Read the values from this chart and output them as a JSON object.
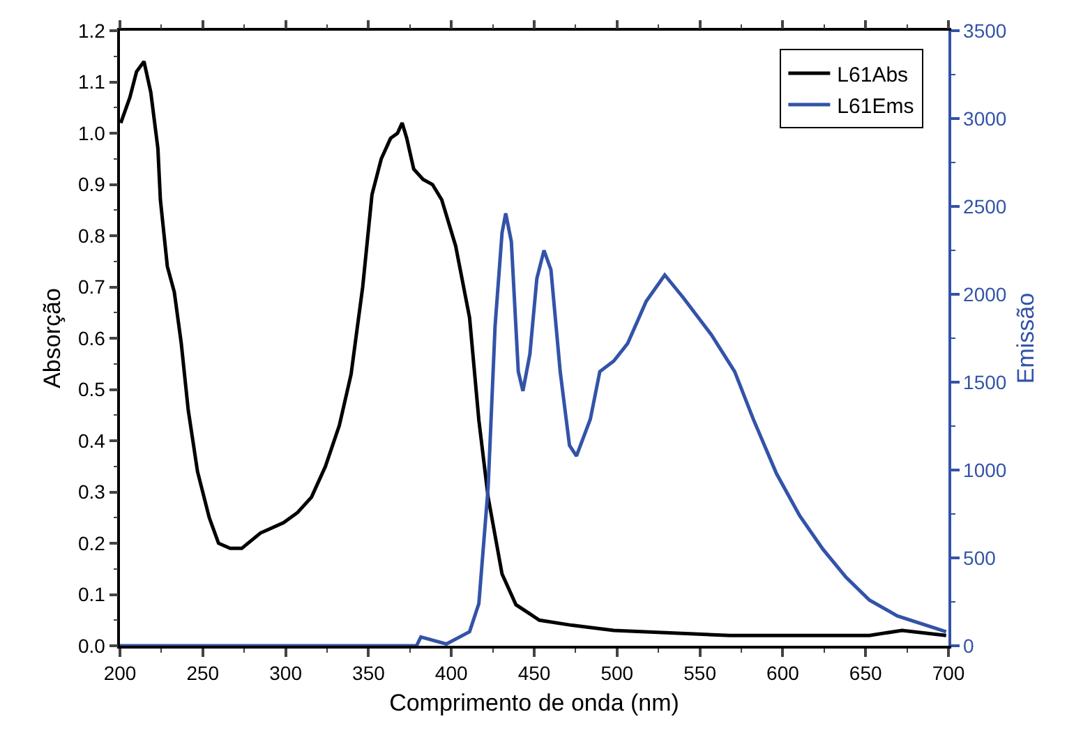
{
  "chart_data": {
    "type": "line",
    "xlabel": "Comprimento de onda (nm)",
    "ylabel": "Absorção",
    "y2label": "Emissão",
    "xlim": [
      200,
      700
    ],
    "xticks": [
      200,
      250,
      300,
      350,
      400,
      450,
      500,
      550,
      600,
      650,
      700
    ],
    "ylim": [
      0,
      1.2
    ],
    "yticks": [
      {
        "value": 0,
        "label": "0.0"
      },
      0.1,
      0.2,
      0.3,
      0.4,
      0.5,
      0.6,
      0.7,
      0.8,
      0.9,
      {
        "value": 1,
        "label": "1.0"
      },
      1.1,
      1.2
    ],
    "y2lim": [
      0,
      3500
    ],
    "y2ticks": [
      0,
      500,
      1000,
      1500,
      2000,
      2500,
      3000,
      3500
    ],
    "legend": "top right",
    "grid": false,
    "marker": "none",
    "line_style": "solid",
    "series": [
      {
        "name": "L61Abs",
        "color": "#000000",
        "x": [
          200.5,
          206,
          210,
          214.5,
          218.6,
          222.9,
          224.4,
          228.6,
          232.8,
          237,
          241.2,
          246.8,
          253.9,
          259.5,
          266.5,
          273.5,
          284.8,
          298.7,
          307.2,
          315.6,
          324,
          332.4,
          339.5,
          346.5,
          352.1,
          357.7,
          363.3,
          367.5,
          370.3,
          373.1,
          377.3,
          382.9,
          388.6,
          394.2,
          402.6,
          411,
          416.6,
          422.2,
          430.6,
          439,
          453.1,
          472.7,
          498,
          568,
          652.3,
          672,
          698.6
        ],
        "values": [
          1.02,
          1.07,
          1.12,
          1.14,
          1.08,
          0.97,
          0.87,
          0.74,
          0.69,
          0.59,
          0.46,
          0.34,
          0.25,
          0.2,
          0.19,
          0.19,
          0.22,
          0.24,
          0.26,
          0.29,
          0.35,
          0.43,
          0.53,
          0.7,
          0.88,
          0.95,
          0.99,
          1,
          1.02,
          0.99,
          0.93,
          0.91,
          0.9,
          0.87,
          0.78,
          0.64,
          0.44,
          0.29,
          0.14,
          0.08,
          0.05,
          0.04,
          0.03,
          0.02,
          0.02,
          0.03,
          0.02
        ]
      },
      {
        "name": "L61Ems",
        "color": "#3353a8",
        "axis": "y2",
        "x": [
          200,
          300,
          379,
          381.6,
          397,
          411,
          416.6,
          422.2,
          426.4,
          430.6,
          432.8,
          436.2,
          440.4,
          443.2,
          447.4,
          451.6,
          455.9,
          460.1,
          465.7,
          471.3,
          475.5,
          483.9,
          489.6,
          498,
          506.4,
          517.6,
          528.8,
          540,
          556.9,
          571,
          582.2,
          596.2,
          610.2,
          624.2,
          638.2,
          652.3,
          669.1,
          698.6
        ],
        "values": [
          0,
          0,
          0,
          50,
          10,
          80,
          240,
          900,
          1820,
          2350,
          2460,
          2300,
          1560,
          1450,
          1660,
          2090,
          2250,
          2140,
          1560,
          1140,
          1080,
          1290,
          1560,
          1620,
          1720,
          1960,
          2110,
          1980,
          1770,
          1560,
          1290,
          980,
          740,
          550,
          390,
          260,
          170,
          80
        ]
      }
    ]
  }
}
